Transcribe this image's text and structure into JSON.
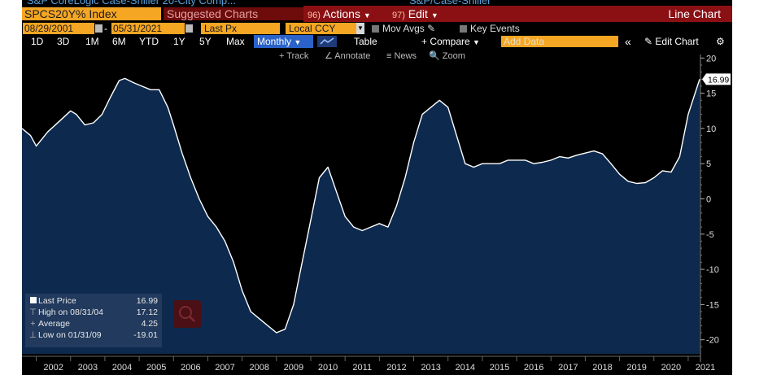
{
  "header": {
    "top_partial": "S&P CoreLogic Case-Shiller 20-City Comp...",
    "top_partial_right": "S&P/Case-Shiller",
    "ticker": "SPCS20Y% Index",
    "suggested_charts": "Suggested Charts",
    "actions_num": "96)",
    "actions": "Actions",
    "edit_num": "97)",
    "edit": "Edit",
    "chart_title": "Line Chart"
  },
  "controls": {
    "start_date": "08/29/2001",
    "end_date": "05/31/2021",
    "field": "Last Px",
    "currency": "Local CCY",
    "mov_avgs": "Mov Avgs",
    "key_events": "Key Events"
  },
  "toolbar": {
    "ranges": [
      "1D",
      "3D",
      "1M",
      "6M",
      "YTD",
      "1Y",
      "5Y",
      "Max"
    ],
    "frequency": "Monthly",
    "table": "Table",
    "compare": "+ Compare",
    "add_data_placeholder": "Add Data",
    "collapse": "«",
    "edit_chart": "Edit Chart"
  },
  "chart_toolbar": [
    "Track",
    "Annotate",
    "News",
    "Zoom"
  ],
  "legend": {
    "items": [
      {
        "label": "Last Price",
        "value": "16.99"
      },
      {
        "label": "High on 08/31/04",
        "value": "17.12"
      },
      {
        "label": "Average",
        "value": "4.25"
      },
      {
        "label": "Low on 01/31/09",
        "value": "-19.01"
      }
    ]
  },
  "colors": {
    "background": "#000000",
    "area_fill": "#0d2a4e",
    "line": "#ffffff",
    "header_bar": "#8b1014",
    "ticker_bg": "#f5a623",
    "frequency_button": "#2a62c9"
  },
  "chart_data": {
    "type": "area",
    "title": "",
    "xlabel": "",
    "ylabel": "",
    "ylim": [
      -22,
      20.5
    ],
    "yticks": [
      -20,
      -15,
      -10,
      -5,
      0,
      5,
      10,
      15,
      20
    ],
    "xticks": [
      "2002",
      "2003",
      "2004",
      "2005",
      "2006",
      "2007",
      "2008",
      "2009",
      "2010",
      "2011",
      "2012",
      "2013",
      "2014",
      "2015",
      "2016",
      "2017",
      "2018",
      "2019",
      "2020",
      "2021"
    ],
    "last_value_label": "16.99",
    "series": [
      {
        "x": [
          "2001-08",
          "2001-11",
          "2002-01",
          "2002-05",
          "2002-09",
          "2003-01",
          "2003-03",
          "2003-06",
          "2003-09",
          "2003-12",
          "2004-03",
          "2004-06",
          "2004-08",
          "2004-11",
          "2005-02",
          "2005-05",
          "2005-08",
          "2005-11",
          "2006-01",
          "2006-04",
          "2006-07",
          "2006-10",
          "2007-01",
          "2007-04",
          "2007-07",
          "2007-10",
          "2008-01",
          "2008-04",
          "2008-07",
          "2008-10",
          "2009-01",
          "2009-04",
          "2009-07",
          "2009-10",
          "2010-01",
          "2010-04",
          "2010-07",
          "2010-10",
          "2011-01",
          "2011-04",
          "2011-07",
          "2011-10",
          "2012-01",
          "2012-04",
          "2012-07",
          "2012-10",
          "2013-01",
          "2013-04",
          "2013-07",
          "2013-10",
          "2014-01",
          "2014-04",
          "2014-07",
          "2014-10",
          "2015-01",
          "2015-04",
          "2015-07",
          "2015-10",
          "2016-01",
          "2016-04",
          "2016-07",
          "2016-10",
          "2017-01",
          "2017-04",
          "2017-07",
          "2017-10",
          "2018-01",
          "2018-04",
          "2018-07",
          "2018-10",
          "2019-01",
          "2019-04",
          "2019-07",
          "2019-10",
          "2020-01",
          "2020-04",
          "2020-07",
          "2020-10",
          "2021-01",
          "2021-05"
        ],
        "values": [
          10,
          9,
          7.5,
          9.5,
          11,
          12.5,
          12,
          10.5,
          10.8,
          12,
          14.5,
          16.8,
          17.1,
          16.5,
          16,
          15.5,
          15.5,
          13,
          10.5,
          6.5,
          3,
          0,
          -2.5,
          -4,
          -6,
          -9,
          -13,
          -16,
          -17,
          -18,
          -19,
          -18.5,
          -15,
          -9,
          -3,
          3,
          4.5,
          1,
          -2.5,
          -4,
          -4.5,
          -4,
          -3.5,
          -4,
          -1,
          3,
          8,
          12,
          13,
          14,
          13,
          9,
          5,
          4.5,
          5,
          5,
          5,
          5.5,
          5.5,
          5.5,
          5,
          5.2,
          5.5,
          6,
          5.8,
          6.2,
          6.5,
          6.8,
          6.4,
          5,
          3.5,
          2.5,
          2.2,
          2.3,
          3,
          4,
          3.8,
          6,
          12,
          16.99
        ]
      }
    ]
  }
}
